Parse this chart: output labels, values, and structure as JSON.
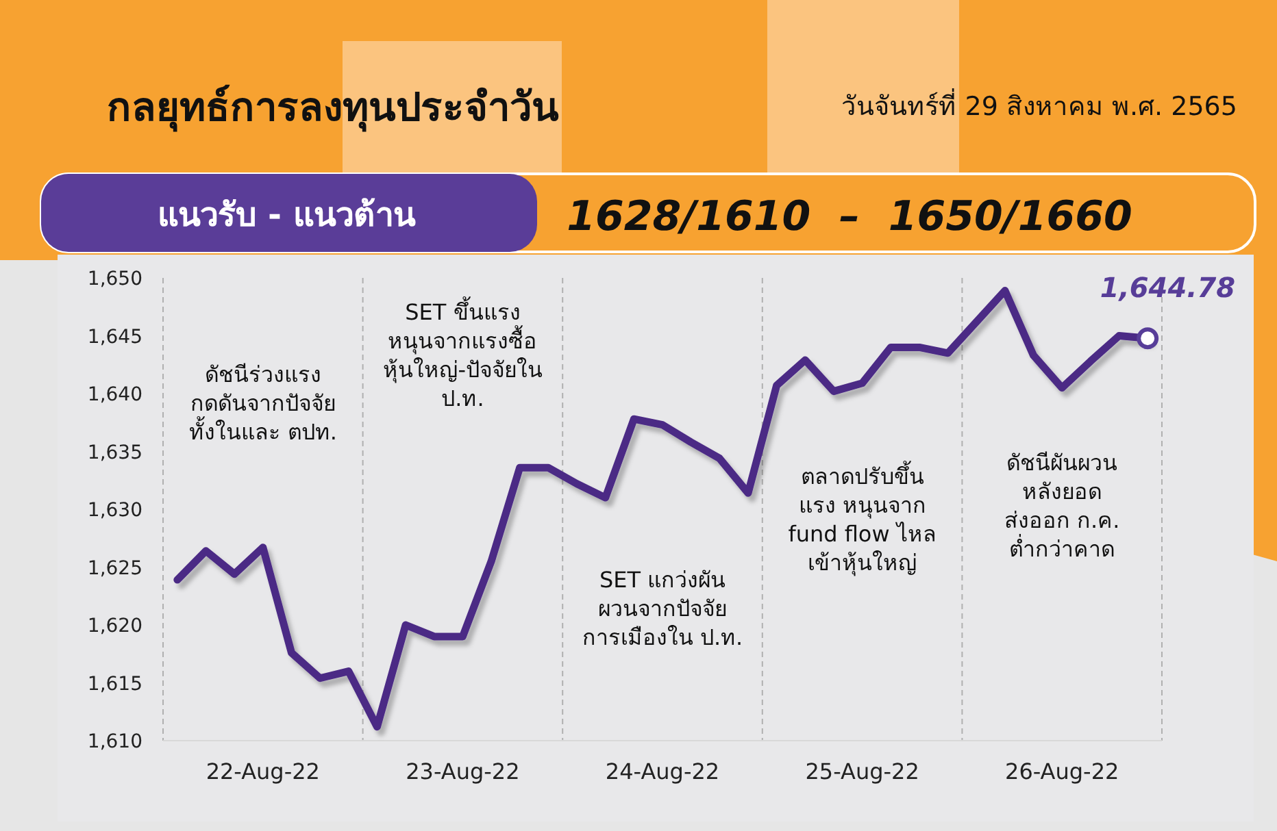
{
  "chart_data": {
    "type": "line",
    "title": "กลยุทธ์การลงทุนประจำวัน",
    "subtitle": "วันจันทร์ที่ 29 สิงหาคม พ.ศ. 2565",
    "annotations": [
      "แนวรับ - แนวต้าน",
      "1628/1610  –  1650/1660",
      "ดัชนีร่วงแรง\nกดดันจากปัจจัย\nทั้งในและ ตปท.",
      "SET ขึ้นแรง\nหนุนจากแรงซื้อ\nหุ้นใหญ่-ปัจจัยใน\nป.ท.",
      "SET แกว่งผัน\nผวนจากปัจจัย\nการเมืองใน ป.ท.",
      "ตลาดปรับขึ้น\nแรง หนุนจาก\nfund flow ไหล\nเข้าหุ้นใหญ่",
      "ดัชนีผันผวน\nหลังยอด\nส่งออก ก.ค.\nต่ำกว่าคาด"
    ],
    "categories": [
      null,
      null,
      null,
      "22-Aug-22",
      null,
      null,
      null,
      null,
      null,
      null,
      "23-Aug-22",
      null,
      null,
      null,
      null,
      null,
      null,
      "24-Aug-22",
      null,
      null,
      null,
      null,
      null,
      null,
      "25-Aug-22",
      null,
      null,
      null,
      null,
      null,
      null,
      "26-Aug-22",
      null,
      null,
      null
    ],
    "ylim": [
      1610,
      1650
    ],
    "yticks": [
      {
        "value": 1610,
        "label": "1,610"
      },
      {
        "value": 1615,
        "label": "1,615"
      },
      {
        "value": 1620,
        "label": "1,620"
      },
      {
        "value": 1625,
        "label": "1,625"
      },
      {
        "value": 1630,
        "label": "1,630"
      },
      {
        "value": 1635,
        "label": "1,635"
      },
      {
        "value": 1640,
        "label": "1,640"
      },
      {
        "value": 1645,
        "label": "1,645"
      },
      {
        "value": 1650,
        "label": "1,650"
      }
    ],
    "grid": "x",
    "line_style": "solid",
    "series": [
      {
        "color": "#4b2a85",
        "values": [
          1623.9,
          1626.4,
          1624.4,
          1626.7,
          1617.6,
          1615.4,
          1616.0,
          1611.2,
          1620.0,
          1619.0,
          1619.0,
          1625.5,
          1633.6,
          1633.6,
          1632.2,
          1631.0,
          1637.8,
          1637.3,
          1635.8,
          1634.4,
          1631.4,
          1640.7,
          1642.9,
          1640.2,
          1640.9,
          1644.0,
          1644.0,
          1643.5,
          1646.2,
          1648.9,
          1643.3,
          1640.5,
          1642.8,
          1645.0,
          1644.78
        ],
        "value_labels": [
          null,
          null,
          null,
          null,
          null,
          null,
          null,
          null,
          null,
          null,
          null,
          null,
          null,
          null,
          null,
          null,
          null,
          null,
          null,
          null,
          null,
          null,
          null,
          null,
          null,
          null,
          null,
          null,
          null,
          null,
          null,
          null,
          null,
          null,
          "1,644.78"
        ]
      }
    ]
  }
}
